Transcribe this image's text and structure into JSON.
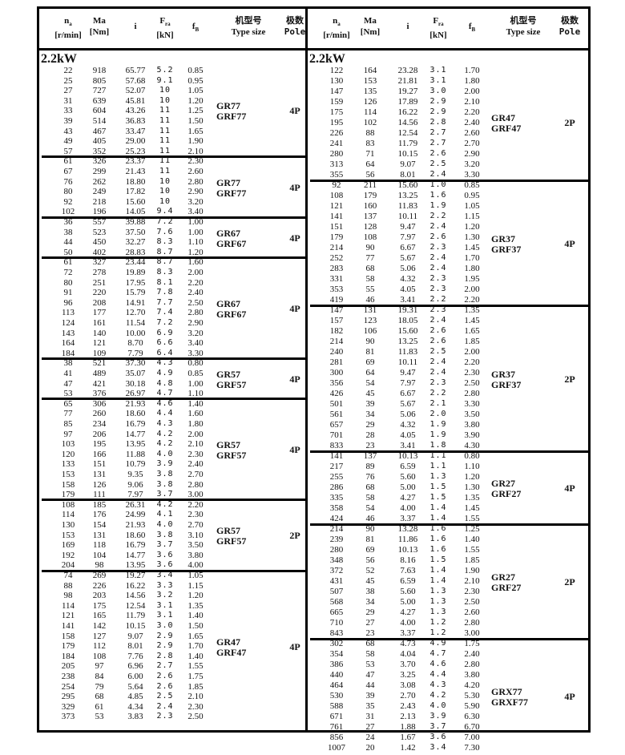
{
  "header": {
    "na": "n",
    "na_sub": "a",
    "na_unit": "[r/min]",
    "ma": "Ma",
    "ma_unit": "[Nm]",
    "i": "i",
    "fra": "F",
    "fra_sub": "ra",
    "fra_unit": "[kN]",
    "fb": "f",
    "fb_sub": "B",
    "type_cn": "机型号",
    "type_en": "Type size",
    "pole_cn": "极数",
    "pole_en": "Pole"
  },
  "power": "2.2kW",
  "left": [
    {
      "type": [
        "GR77",
        "GRF77"
      ],
      "pole": "4P",
      "rows": [
        [
          "22",
          "918",
          "65.77",
          "5.2",
          "0.85"
        ],
        [
          "25",
          "805",
          "57.68",
          "9.1",
          "0.95"
        ],
        [
          "27",
          "727",
          "52.07",
          "10",
          "1.05"
        ],
        [
          "31",
          "639",
          "45.81",
          "10",
          "1.20"
        ],
        [
          "33",
          "604",
          "43.26",
          "11",
          "1.25"
        ],
        [
          "39",
          "514",
          "36.83",
          "11",
          "1.50"
        ],
        [
          "43",
          "467",
          "33.47",
          "11",
          "1.65"
        ],
        [
          "49",
          "405",
          "29.00",
          "11",
          "1.90"
        ],
        [
          "57",
          "352",
          "25.23",
          "11",
          "2.10"
        ]
      ]
    },
    {
      "type": [
        "GR77",
        "GRF77"
      ],
      "pole": "4P",
      "rows": [
        [
          "61",
          "326",
          "23.37",
          "11",
          "2.30"
        ],
        [
          "67",
          "299",
          "21.43",
          "11",
          "2.60"
        ],
        [
          "76",
          "262",
          "18.80",
          "10",
          "2.80"
        ],
        [
          "80",
          "249",
          "17.82",
          "10",
          "2.90"
        ],
        [
          "92",
          "218",
          "15.60",
          "10",
          "3.20"
        ],
        [
          "102",
          "196",
          "14.05",
          "9.4",
          "3.40"
        ]
      ]
    },
    {
      "type": [
        "GR67",
        "GRF67"
      ],
      "pole": "4P",
      "rows": [
        [
          "36",
          "557",
          "39.88",
          "7.2",
          "1.00"
        ],
        [
          "38",
          "523",
          "37.50",
          "7.6",
          "1.00"
        ],
        [
          "44",
          "450",
          "32.27",
          "8.3",
          "1.10"
        ],
        [
          "50",
          "402",
          "28.83",
          "8.7",
          "1.20"
        ]
      ]
    },
    {
      "type": [
        "GR67",
        "GRF67"
      ],
      "pole": "4P",
      "rows": [
        [
          "61",
          "327",
          "23.44",
          "8.7",
          "1.60"
        ],
        [
          "72",
          "278",
          "19.89",
          "8.3",
          "2.00"
        ],
        [
          "80",
          "251",
          "17.95",
          "8.1",
          "2.20"
        ],
        [
          "91",
          "220",
          "15.79",
          "7.8",
          "2.40"
        ],
        [
          "96",
          "208",
          "14.91",
          "7.7",
          "2.50"
        ],
        [
          "113",
          "177",
          "12.70",
          "7.4",
          "2.80"
        ],
        [
          "124",
          "161",
          "11.54",
          "7.2",
          "2.90"
        ],
        [
          "143",
          "140",
          "10.00",
          "6.9",
          "3.20"
        ],
        [
          "164",
          "121",
          "8.70",
          "6.6",
          "3.40"
        ],
        [
          "184",
          "109",
          "7.79",
          "6.4",
          "3.30"
        ]
      ]
    },
    {
      "type": [
        "GR57",
        "GRF57"
      ],
      "pole": "4P",
      "rows": [
        [
          "38",
          "521",
          "37.30",
          "4.3",
          "0.80"
        ],
        [
          "41",
          "489",
          "35.07",
          "4.9",
          "0.85"
        ],
        [
          "47",
          "421",
          "30.18",
          "4.8",
          "1.00"
        ],
        [
          "53",
          "376",
          "26.97",
          "4.7",
          "1.10"
        ]
      ]
    },
    {
      "type": [
        "GR57",
        "GRF57"
      ],
      "pole": "4P",
      "rows": [
        [
          "65",
          "306",
          "21.93",
          "4.6",
          "1.40"
        ],
        [
          "77",
          "260",
          "18.60",
          "4.4",
          "1.60"
        ],
        [
          "85",
          "234",
          "16.79",
          "4.3",
          "1.80"
        ],
        [
          "97",
          "206",
          "14.77",
          "4.2",
          "2.00"
        ],
        [
          "103",
          "195",
          "13.95",
          "4.2",
          "2.10"
        ],
        [
          "120",
          "166",
          "11.88",
          "4.0",
          "2.30"
        ],
        [
          "133",
          "151",
          "10.79",
          "3.9",
          "2.40"
        ],
        [
          "153",
          "131",
          "9.35",
          "3.8",
          "2.70"
        ],
        [
          "158",
          "126",
          "9.06",
          "3.8",
          "2.80"
        ],
        [
          "179",
          "111",
          "7.97",
          "3.7",
          "3.00"
        ]
      ]
    },
    {
      "type": [
        "GR57",
        "GRF57"
      ],
      "pole": "2P",
      "rows": [
        [
          "108",
          "185",
          "26.31",
          "4.2",
          "2.20"
        ],
        [
          "114",
          "176",
          "24.99",
          "4.1",
          "2.30"
        ],
        [
          "130",
          "154",
          "21.93",
          "4.0",
          "2.70"
        ],
        [
          "153",
          "131",
          "18.60",
          "3.8",
          "3.10"
        ],
        [
          "169",
          "118",
          "16.79",
          "3.7",
          "3.50"
        ],
        [
          "192",
          "104",
          "14.77",
          "3.6",
          "3.80"
        ],
        [
          "204",
          "98",
          "13.95",
          "3.6",
          "4.00"
        ]
      ]
    },
    {
      "type": [
        "GR47",
        "GRF47"
      ],
      "pole": "4P",
      "rows": [
        [
          "74",
          "269",
          "19.27",
          "3.4",
          "1.05"
        ],
        [
          "88",
          "226",
          "16.22",
          "3.3",
          "1.15"
        ],
        [
          "98",
          "203",
          "14.56",
          "3.2",
          "1.20"
        ],
        [
          "114",
          "175",
          "12.54",
          "3.1",
          "1.35"
        ],
        [
          "121",
          "165",
          "11.79",
          "3.1",
          "1.40"
        ],
        [
          "141",
          "142",
          "10.15",
          "3.0",
          "1.50"
        ],
        [
          "158",
          "127",
          "9.07",
          "2.9",
          "1.65"
        ],
        [
          "179",
          "112",
          "8.01",
          "2.9",
          "1.70"
        ],
        [
          "184",
          "108",
          "7.76",
          "2.8",
          "1.40"
        ],
        [
          "205",
          "97",
          "6.96",
          "2.7",
          "1.55"
        ],
        [
          "238",
          "84",
          "6.00",
          "2.6",
          "1.75"
        ],
        [
          "254",
          "79",
          "5.64",
          "2.6",
          "1.85"
        ],
        [
          "295",
          "68",
          "4.85",
          "2.5",
          "2.10"
        ],
        [
          "329",
          "61",
          "4.34",
          "2.4",
          "2.30"
        ],
        [
          "373",
          "53",
          "3.83",
          "2.3",
          "2.50"
        ]
      ]
    }
  ],
  "right": [
    {
      "type": [
        "GR47",
        "GRF47"
      ],
      "pole": "2P",
      "rows": [
        [
          "122",
          "164",
          "23.28",
          "3.1",
          "1.70"
        ],
        [
          "130",
          "153",
          "21.81",
          "3.1",
          "1.80"
        ],
        [
          "147",
          "135",
          "19.27",
          "3.0",
          "2.00"
        ],
        [
          "159",
          "126",
          "17.89",
          "2.9",
          "2.10"
        ],
        [
          "175",
          "114",
          "16.22",
          "2.9",
          "2.20"
        ],
        [
          "195",
          "102",
          "14.56",
          "2.8",
          "2.40"
        ],
        [
          "226",
          "88",
          "12.54",
          "2.7",
          "2.60"
        ],
        [
          "241",
          "83",
          "11.79",
          "2.7",
          "2.70"
        ],
        [
          "280",
          "71",
          "10.15",
          "2.6",
          "2.90"
        ],
        [
          "313",
          "64",
          "9.07",
          "2.5",
          "3.20"
        ],
        [
          "355",
          "56",
          "8.01",
          "2.4",
          "3.30"
        ]
      ]
    },
    {
      "type": [
        "GR37",
        "GRF37"
      ],
      "pole": "4P",
      "rows": [
        [
          "92",
          "211",
          "15.60",
          "1.0",
          "0.85"
        ],
        [
          "108",
          "179",
          "13.25",
          "1.6",
          "0.95"
        ],
        [
          "121",
          "160",
          "11.83",
          "1.9",
          "1.05"
        ],
        [
          "141",
          "137",
          "10.11",
          "2.2",
          "1.15"
        ],
        [
          "151",
          "128",
          "9.47",
          "2.4",
          "1.20"
        ],
        [
          "179",
          "108",
          "7.97",
          "2.6",
          "1.30"
        ],
        [
          "214",
          "90",
          "6.67",
          "2.3",
          "1.45"
        ],
        [
          "252",
          "77",
          "5.67",
          "2.4",
          "1.70"
        ],
        [
          "283",
          "68",
          "5.06",
          "2.4",
          "1.80"
        ],
        [
          "331",
          "58",
          "4.32",
          "2.3",
          "1.95"
        ],
        [
          "353",
          "55",
          "4.05",
          "2.3",
          "2.00"
        ],
        [
          "419",
          "46",
          "3.41",
          "2.2",
          "2.20"
        ]
      ]
    },
    {
      "type": [
        "GR37",
        "GRF37"
      ],
      "pole": "2P",
      "rows": [
        [
          "147",
          "131",
          "19.31",
          "2.3",
          "1.35"
        ],
        [
          "157",
          "123",
          "18.05",
          "2.4",
          "1.45"
        ],
        [
          "182",
          "106",
          "15.60",
          "2.6",
          "1.65"
        ],
        [
          "214",
          "90",
          "13.25",
          "2.6",
          "1.85"
        ],
        [
          "240",
          "81",
          "11.83",
          "2.5",
          "2.00"
        ],
        [
          "281",
          "69",
          "10.11",
          "2.4",
          "2.20"
        ],
        [
          "300",
          "64",
          "9.47",
          "2.4",
          "2.30"
        ],
        [
          "356",
          "54",
          "7.97",
          "2.3",
          "2.50"
        ],
        [
          "426",
          "45",
          "6.67",
          "2.2",
          "2.80"
        ],
        [
          "501",
          "39",
          "5.67",
          "2.1",
          "3.30"
        ],
        [
          "561",
          "34",
          "5.06",
          "2.0",
          "3.50"
        ],
        [
          "657",
          "29",
          "4.32",
          "1.9",
          "3.80"
        ],
        [
          "701",
          "28",
          "4.05",
          "1.9",
          "3.90"
        ],
        [
          "833",
          "23",
          "3.41",
          "1.8",
          "4.30"
        ]
      ]
    },
    {
      "type": [
        "GR27",
        "GRF27"
      ],
      "pole": "4P",
      "rows": [
        [
          "141",
          "137",
          "10.13",
          "1.1",
          "0.80"
        ],
        [
          "217",
          "89",
          "6.59",
          "1.1",
          "1.10"
        ],
        [
          "255",
          "76",
          "5.60",
          "1.3",
          "1.20"
        ],
        [
          "286",
          "68",
          "5.00",
          "1.5",
          "1.30"
        ],
        [
          "335",
          "58",
          "4.27",
          "1.5",
          "1.35"
        ],
        [
          "358",
          "54",
          "4.00",
          "1.4",
          "1.45"
        ],
        [
          "424",
          "46",
          "3.37",
          "1.4",
          "1.55"
        ]
      ]
    },
    {
      "type": [
        "GR27",
        "GRF27"
      ],
      "pole": "2P",
      "rows": [
        [
          "214",
          "90",
          "13.28",
          "1.6",
          "1.25"
        ],
        [
          "239",
          "81",
          "11.86",
          "1.6",
          "1.40"
        ],
        [
          "280",
          "69",
          "10.13",
          "1.6",
          "1.55"
        ],
        [
          "348",
          "56",
          "8.16",
          "1.5",
          "1.85"
        ],
        [
          "372",
          "52",
          "7.63",
          "1.4",
          "1.90"
        ],
        [
          "431",
          "45",
          "6.59",
          "1.4",
          "2.10"
        ],
        [
          "507",
          "38",
          "5.60",
          "1.3",
          "2.30"
        ],
        [
          "568",
          "34",
          "5.00",
          "1.3",
          "2.50"
        ],
        [
          "665",
          "29",
          "4.27",
          "1.3",
          "2.60"
        ],
        [
          "710",
          "27",
          "4.00",
          "1.2",
          "2.80"
        ],
        [
          "843",
          "23",
          "3.37",
          "1.2",
          "3.00"
        ]
      ]
    },
    {
      "type": [
        "GRX77",
        "GRXF77"
      ],
      "pole": "4P",
      "rows": [
        [
          "302",
          "68",
          "4.73",
          "4.9",
          "1.75"
        ],
        [
          "354",
          "58",
          "4.04",
          "4.7",
          "2.40"
        ],
        [
          "386",
          "53",
          "3.70",
          "4.6",
          "2.80"
        ],
        [
          "440",
          "47",
          "3.25",
          "4.4",
          "3.80"
        ],
        [
          "464",
          "44",
          "3.08",
          "4.3",
          "4.20"
        ],
        [
          "530",
          "39",
          "2.70",
          "4.2",
          "5.30"
        ],
        [
          "588",
          "35",
          "2.43",
          "4.0",
          "5.90"
        ],
        [
          "671",
          "31",
          "2.13",
          "3.9",
          "6.30"
        ],
        [
          "761",
          "27",
          "1.88",
          "3.7",
          "6.70"
        ],
        [
          "856",
          "24",
          "1.67",
          "3.6",
          "7.00"
        ],
        [
          "1007",
          "20",
          "1.42",
          "3.4",
          "7.30"
        ]
      ]
    }
  ]
}
